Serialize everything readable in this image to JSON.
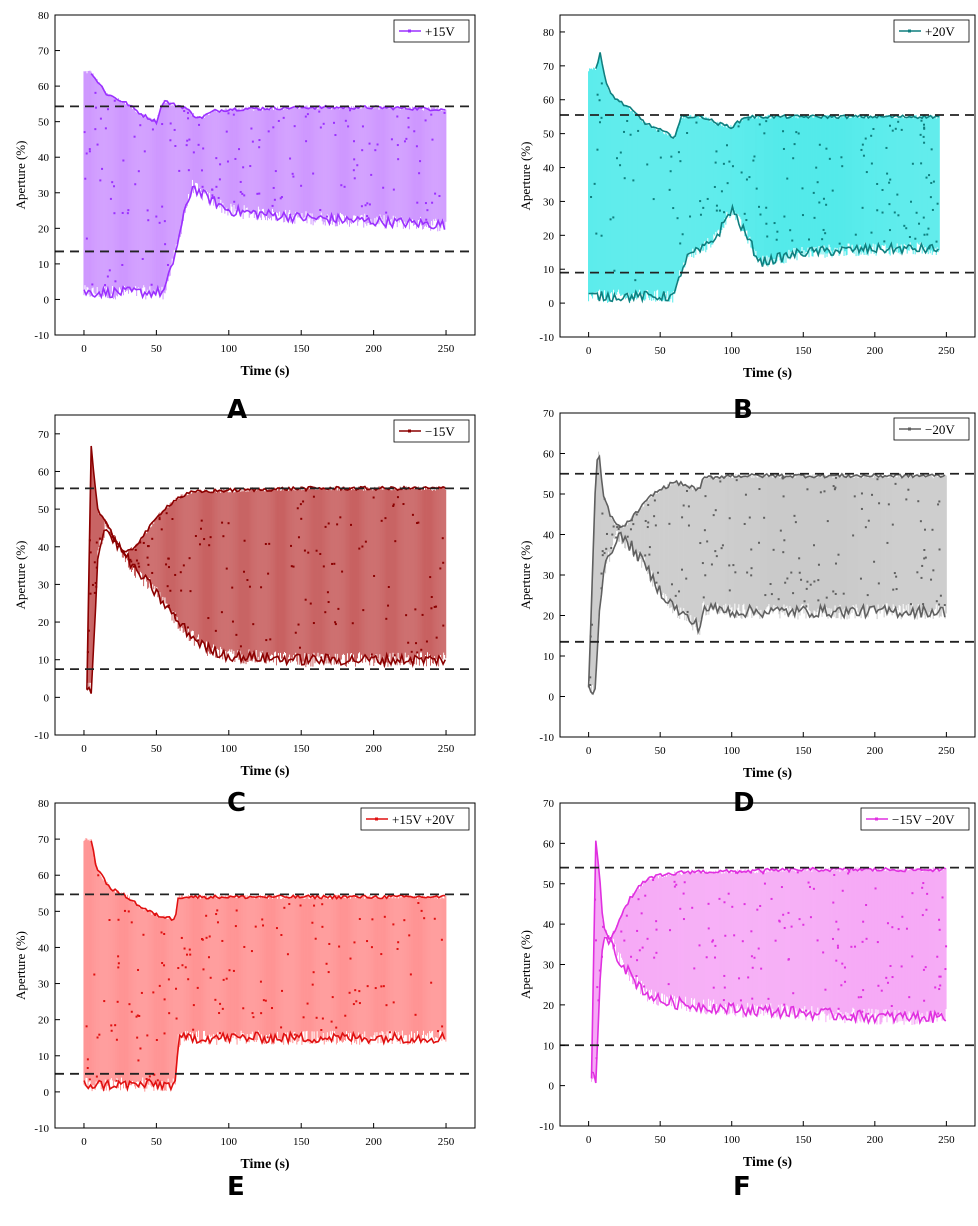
{
  "chart_data": [
    {
      "panel": "A",
      "type": "line",
      "legend": "+15V",
      "legend_position": "top-right",
      "color": "#9b30ff",
      "fill": "#c98cff",
      "xlabel": "Time (s)",
      "ylabel": "Aperture (%)",
      "xlim": [
        -20,
        270
      ],
      "ylim": [
        -10,
        80
      ],
      "xticks": [
        0,
        50,
        100,
        150,
        200,
        250
      ],
      "yticks": [
        -10,
        0,
        10,
        20,
        30,
        40,
        50,
        60,
        70,
        80
      ],
      "reference_lines": [
        54.3,
        13.5
      ],
      "upper_envelope": {
        "x": [
          5,
          8,
          12,
          15,
          20,
          30,
          40,
          50,
          55,
          60,
          70,
          75,
          80,
          90,
          100,
          150,
          200,
          250
        ],
        "y": [
          64,
          62,
          60,
          58,
          57,
          55,
          52,
          50,
          56,
          55,
          54,
          52,
          51,
          53,
          53.5,
          54,
          54,
          53.5
        ]
      },
      "lower_envelope": {
        "x": [
          0,
          10,
          20,
          40,
          55,
          60,
          70,
          75,
          80,
          100,
          150,
          200,
          250
        ],
        "y": [
          2,
          2,
          2,
          2,
          2,
          8,
          25,
          32,
          30,
          25,
          23,
          22,
          21
        ]
      }
    },
    {
      "panel": "B",
      "type": "line",
      "legend": "+20V",
      "legend_position": "top-right",
      "color": "#0f7f7f",
      "fill": "#40e8e8",
      "xlabel": "Time (s)",
      "ylabel": "Aperture (%)",
      "xlim": [
        -20,
        270
      ],
      "ylim": [
        -10,
        85
      ],
      "xticks": [
        0,
        50,
        100,
        150,
        200,
        250
      ],
      "yticks": [
        -10,
        0,
        10,
        20,
        30,
        40,
        50,
        60,
        70,
        80
      ],
      "reference_lines": [
        55.5,
        9
      ],
      "upper_envelope": {
        "x": [
          5,
          8,
          12,
          15,
          20,
          30,
          40,
          50,
          60,
          65,
          70,
          80,
          90,
          100,
          110,
          150,
          200,
          245
        ],
        "y": [
          69,
          74,
          65,
          62,
          60,
          57,
          53,
          51,
          49,
          55,
          55,
          55,
          53,
          52,
          55,
          55,
          55,
          55
        ]
      },
      "lower_envelope": {
        "x": [
          0,
          10,
          20,
          40,
          60,
          65,
          70,
          80,
          90,
          100,
          110,
          120,
          150,
          200,
          245
        ],
        "y": [
          2,
          2,
          2,
          2,
          2,
          10,
          14,
          16,
          20,
          28,
          20,
          12,
          15,
          16,
          16
        ]
      }
    },
    {
      "panel": "C",
      "type": "line",
      "legend": "−15V",
      "legend_position": "top-right",
      "color": "#8b0000",
      "fill": "#c25050",
      "xlabel": "Time (s)",
      "ylabel": "Aperture (%)",
      "xlim": [
        -20,
        270
      ],
      "ylim": [
        -10,
        75
      ],
      "xticks": [
        0,
        50,
        100,
        150,
        200,
        250
      ],
      "yticks": [
        -10,
        0,
        10,
        20,
        30,
        40,
        50,
        60,
        70
      ],
      "reference_lines": [
        55.5,
        7.5
      ],
      "upper_envelope": {
        "x": [
          2,
          5,
          8,
          10,
          15,
          20,
          28,
          35,
          45,
          55,
          65,
          75,
          100,
          150,
          200,
          250
        ],
        "y": [
          2,
          67,
          55,
          49,
          47,
          43,
          38,
          40,
          45,
          50,
          53,
          54.5,
          55,
          55.5,
          55.5,
          55.5
        ]
      },
      "lower_envelope": {
        "x": [
          2,
          5,
          10,
          15,
          20,
          28,
          35,
          45,
          55,
          65,
          75,
          85,
          100,
          150,
          200,
          250
        ],
        "y": [
          2,
          2,
          40,
          45,
          42,
          38,
          34,
          30,
          25,
          20,
          16,
          13,
          11,
          10,
          10,
          10
        ]
      }
    },
    {
      "panel": "D",
      "type": "line",
      "legend": "−20V",
      "legend_position": "top-right",
      "color": "#606060",
      "fill": "#c4c4c4",
      "xlabel": "Time (s)",
      "ylabel": "Aperture (%)",
      "xlim": [
        -20,
        270
      ],
      "ylim": [
        -10,
        70
      ],
      "xticks": [
        0,
        50,
        100,
        150,
        200,
        250
      ],
      "yticks": [
        -10,
        0,
        10,
        20,
        30,
        40,
        50,
        60,
        70
      ],
      "reference_lines": [
        55,
        13.5
      ],
      "upper_envelope": {
        "x": [
          0,
          5,
          7,
          10,
          15,
          20,
          25,
          35,
          45,
          60,
          78,
          80,
          100,
          150,
          200,
          250
        ],
        "y": [
          2,
          55,
          61,
          50,
          45,
          42,
          42,
          46,
          50,
          53,
          51,
          54,
          54.5,
          54.5,
          54.5,
          54.5
        ]
      },
      "lower_envelope": {
        "x": [
          0,
          5,
          7,
          10,
          15,
          20,
          30,
          40,
          50,
          60,
          70,
          78,
          80,
          100,
          150,
          200,
          250
        ],
        "y": [
          2,
          2,
          20,
          30,
          35,
          40,
          37,
          32,
          26,
          22,
          19,
          17,
          22,
          21,
          21,
          21,
          21
        ]
      }
    },
    {
      "panel": "E",
      "type": "line",
      "legend": "+15V +20V",
      "legend_position": "top-right",
      "color": "#e01010",
      "fill": "#ff8888",
      "xlabel": "Time (s)",
      "ylabel": "Aperture (%)",
      "xlim": [
        -20,
        270
      ],
      "ylim": [
        -10,
        80
      ],
      "xticks": [
        0,
        50,
        100,
        150,
        200,
        250
      ],
      "yticks": [
        -10,
        0,
        10,
        20,
        30,
        40,
        50,
        60,
        70,
        80
      ],
      "reference_lines": [
        54.7,
        5
      ],
      "upper_envelope": {
        "x": [
          5,
          8,
          12,
          15,
          20,
          30,
          40,
          50,
          60,
          63,
          65,
          70,
          100,
          150,
          200,
          250
        ],
        "y": [
          70,
          63,
          60,
          58,
          56,
          54,
          51,
          49,
          48,
          48,
          54,
          54,
          54,
          54,
          54,
          54
        ]
      },
      "lower_envelope": {
        "x": [
          0,
          10,
          20,
          40,
          60,
          63,
          65,
          70,
          100,
          150,
          200,
          250
        ],
        "y": [
          2,
          2,
          2,
          2,
          2,
          2,
          14,
          15,
          15,
          15,
          15,
          15
        ]
      }
    },
    {
      "panel": "F",
      "type": "line",
      "legend": "−15V −20V",
      "legend_position": "top-right",
      "color": "#e030e0",
      "fill": "#f5a0f5",
      "xlabel": "Time (s)",
      "ylabel": "Aperture (%)",
      "xlim": [
        -20,
        270
      ],
      "ylim": [
        -10,
        70
      ],
      "xticks": [
        0,
        50,
        100,
        150,
        200,
        250
      ],
      "yticks": [
        -10,
        0,
        10,
        20,
        30,
        40,
        50,
        60,
        70
      ],
      "reference_lines": [
        54,
        10
      ],
      "upper_envelope": {
        "x": [
          2,
          5,
          8,
          10,
          15,
          20,
          30,
          40,
          50,
          70,
          100,
          150,
          200,
          250
        ],
        "y": [
          2,
          61,
          50,
          40,
          36,
          40,
          47,
          51,
          52,
          53,
          53,
          53.5,
          53.5,
          53.5
        ]
      },
      "lower_envelope": {
        "x": [
          2,
          5,
          8,
          10,
          15,
          20,
          30,
          40,
          50,
          70,
          100,
          150,
          200,
          250
        ],
        "y": [
          2,
          2,
          25,
          35,
          37,
          32,
          27,
          23,
          21,
          20,
          19,
          18,
          17,
          17
        ]
      }
    }
  ]
}
